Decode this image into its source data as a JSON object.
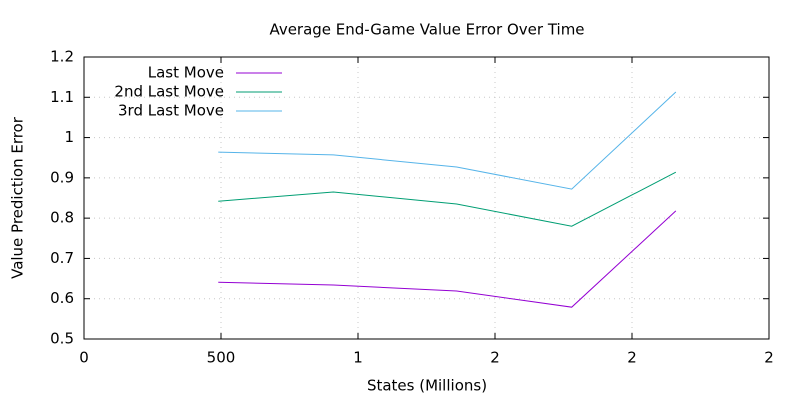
{
  "chart_data": {
    "type": "line",
    "title": "Average End-Game Value Error Over Time",
    "x_label": "States (Millions)",
    "y_label": "Value Prediction Error",
    "x": [
      0.49,
      0.91,
      1.36,
      1.78,
      2.16
    ],
    "series": [
      {
        "name": "Last Move",
        "color": "#9400d3",
        "values": [
          0.641,
          0.634,
          0.619,
          0.579,
          0.818
        ]
      },
      {
        "name": "2nd Last Move",
        "color": "#009e73",
        "values": [
          0.842,
          0.865,
          0.835,
          0.78,
          0.914
        ]
      },
      {
        "name": "3rd Last Move",
        "color": "#56b4e9",
        "values": [
          0.964,
          0.957,
          0.927,
          0.872,
          1.113
        ]
      }
    ],
    "xlim": [
      0,
      2.5
    ],
    "xticks": [
      0,
      {
        "value": 0.5,
        "label": "500"
      },
      1,
      {
        "value": 1.5,
        "label": "2"
      },
      2,
      {
        "value": 2.5,
        "label": "2"
      }
    ],
    "ylim": [
      0.5,
      1.2
    ],
    "yticks": [
      0.5,
      0.6,
      0.7,
      0.8,
      0.9,
      1,
      1.1,
      1.2
    ],
    "grid": true,
    "legend": "top-left"
  }
}
